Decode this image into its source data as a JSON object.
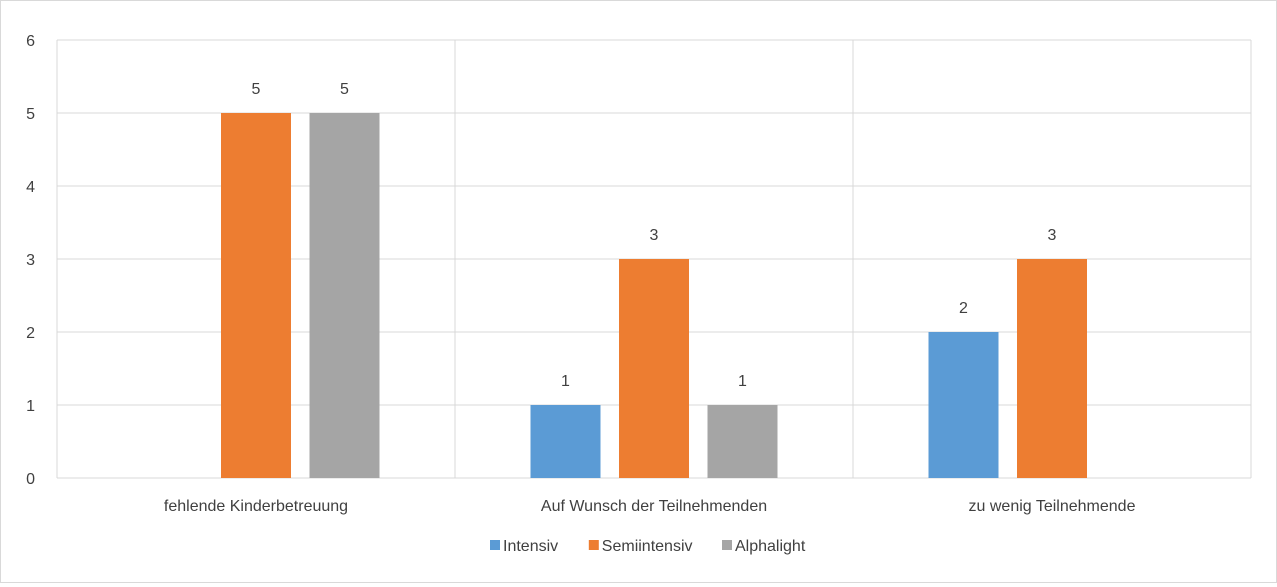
{
  "chart_data": {
    "type": "bar",
    "categories": [
      "fehlende Kinderbetreuung",
      "Auf Wunsch der Teilnehmenden",
      "zu wenig Teilnehmende"
    ],
    "series": [
      {
        "name": "Intensiv",
        "values": [
          0,
          1,
          2
        ],
        "color": "#5b9bd5"
      },
      {
        "name": "Semiintensiv",
        "values": [
          5,
          3,
          3
        ],
        "color": "#ed7d31"
      },
      {
        "name": "Alphalight",
        "values": [
          5,
          1,
          0
        ],
        "color": "#a5a5a5"
      }
    ],
    "ylim": [
      0,
      6
    ],
    "yticks": [
      0,
      1,
      2,
      3,
      4,
      5,
      6
    ],
    "grid": true,
    "legend_position": "bottom",
    "data_labels": true
  }
}
